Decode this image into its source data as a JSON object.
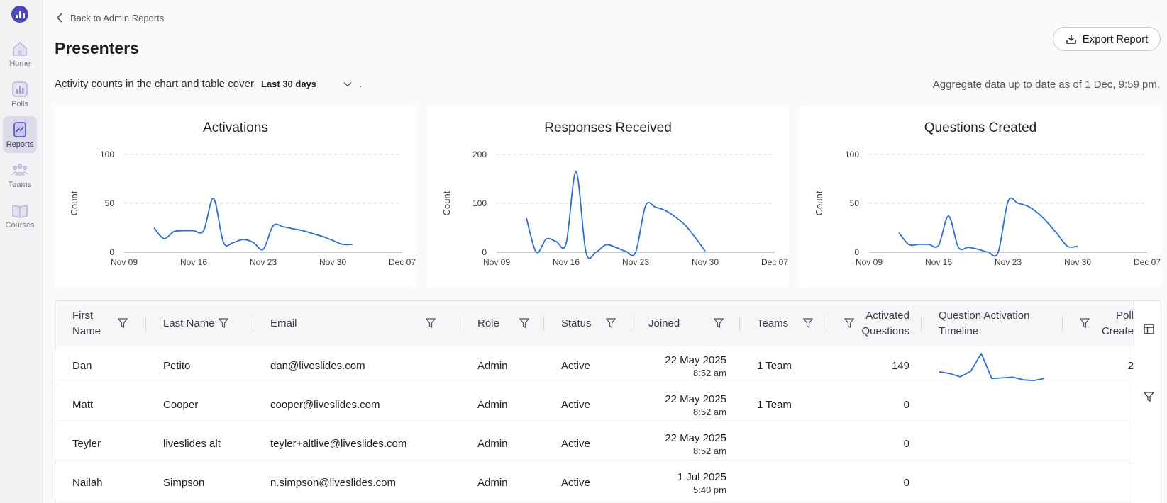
{
  "sidebar": {
    "items": [
      {
        "label": "Home",
        "icon": "home-icon"
      },
      {
        "label": "Polls",
        "icon": "polls-icon"
      },
      {
        "label": "Reports",
        "icon": "reports-icon",
        "active": true
      },
      {
        "label": "Teams",
        "icon": "teams-icon"
      },
      {
        "label": "Courses",
        "icon": "courses-icon"
      }
    ]
  },
  "header": {
    "back_label": "Back to Admin Reports",
    "title": "Presenters",
    "export_label": "Export Report"
  },
  "filters": {
    "activity_text": "Activity counts in the chart and table cover",
    "range_value": "Last 30 days",
    "period": ".",
    "aggregate_text": "Aggregate data up to date as of 1 Dec, 9:59 pm."
  },
  "chart_data": [
    {
      "type": "line",
      "title": "Activations",
      "ylabel": "Count",
      "xlabel": "",
      "ylim": [
        0,
        100
      ],
      "yticks": [
        0,
        50,
        100
      ],
      "xticks": [
        "Nov 09",
        "Nov 16",
        "Nov 23",
        "Nov 30",
        "Dec 07"
      ],
      "x_range_days": [
        0,
        28
      ],
      "grid": true,
      "color": "#2f6fce",
      "x": [
        3,
        4,
        5,
        6,
        7,
        8,
        9,
        10,
        11,
        12,
        13,
        14,
        15,
        16,
        17,
        18,
        19,
        20,
        21,
        22,
        23
      ],
      "y": [
        25,
        14,
        21,
        22,
        22,
        22,
        55,
        10,
        10,
        13,
        10,
        3,
        27,
        26,
        24,
        22,
        19,
        16,
        12,
        8,
        8
      ]
    },
    {
      "type": "line",
      "title": "Responses Received",
      "ylabel": "Count",
      "xlabel": "",
      "ylim": [
        0,
        200
      ],
      "yticks": [
        0,
        100,
        200
      ],
      "xticks": [
        "Nov 09",
        "Nov 16",
        "Nov 23",
        "Nov 30",
        "Dec 07"
      ],
      "x_range_days": [
        0,
        28
      ],
      "grid": true,
      "color": "#2f6fce",
      "x": [
        3,
        4,
        5,
        6,
        7,
        8,
        9,
        10,
        11,
        12,
        13,
        14,
        15,
        16,
        17,
        18,
        19,
        20,
        21
      ],
      "y": [
        70,
        0,
        27,
        22,
        18,
        165,
        0,
        0,
        15,
        10,
        2,
        0,
        95,
        92,
        85,
        72,
        55,
        30,
        2
      ]
    },
    {
      "type": "line",
      "title": "Questions Created",
      "ylabel": "Count",
      "xlabel": "",
      "ylim": [
        0,
        100
      ],
      "yticks": [
        0,
        50,
        100
      ],
      "xticks": [
        "Nov 09",
        "Nov 16",
        "Nov 23",
        "Nov 30",
        "Dec 07"
      ],
      "x_range_days": [
        0,
        28
      ],
      "grid": true,
      "color": "#2f6fce",
      "x": [
        3,
        4,
        5,
        6,
        7,
        8,
        9,
        10,
        11,
        12,
        13,
        14,
        15,
        16,
        17,
        18,
        19,
        20,
        21
      ],
      "y": [
        20,
        8,
        8,
        8,
        7,
        37,
        5,
        5,
        3,
        0,
        0,
        52,
        50,
        47,
        40,
        30,
        18,
        6,
        6
      ]
    }
  ],
  "table": {
    "columns": [
      {
        "label": "First Name",
        "lines": [
          "First",
          "Name"
        ]
      },
      {
        "label": "Last Name",
        "lines": [
          "Last Name"
        ]
      },
      {
        "label": "Email",
        "lines": [
          "Email"
        ]
      },
      {
        "label": "Role",
        "lines": [
          "Role"
        ]
      },
      {
        "label": "Status",
        "lines": [
          "Status"
        ]
      },
      {
        "label": "Joined",
        "lines": [
          "Joined"
        ]
      },
      {
        "label": "Teams",
        "lines": [
          "Teams"
        ]
      },
      {
        "label": "Activated Questions",
        "lines": [
          "Activated",
          "Questions"
        ]
      },
      {
        "label": "Question Activation Timeline",
        "lines": [
          "Question Activation",
          "Timeline"
        ]
      },
      {
        "label": "Polls Created",
        "lines": [
          "Poll",
          "Create"
        ]
      }
    ],
    "rows": [
      {
        "first": "Dan",
        "last": "Petito",
        "email": "dan@liveslides.com",
        "role": "Admin",
        "status": "Active",
        "joined_date": "22 May 2025",
        "joined_time": "8:52 am",
        "teams": "1 Team",
        "activated": "149",
        "polls": "2",
        "timeline": [
          30,
          25,
          15,
          32,
          85,
          10,
          12,
          14,
          6,
          4,
          10
        ]
      },
      {
        "first": "Matt",
        "last": "Cooper",
        "email": "cooper@liveslides.com",
        "role": "Admin",
        "status": "Active",
        "joined_date": "22 May 2025",
        "joined_time": "8:52 am",
        "teams": "1 Team",
        "activated": "0",
        "polls": "",
        "timeline": []
      },
      {
        "first": "Teyler",
        "last": "liveslides alt",
        "email": "teyler+altlive@liveslides.com",
        "role": "Admin",
        "status": "Active",
        "joined_date": "22 May 2025",
        "joined_time": "8:52 am",
        "teams": "",
        "activated": "0",
        "polls": "",
        "timeline": []
      },
      {
        "first": "Nailah",
        "last": "Simpson",
        "email": "n.simpson@liveslides.com",
        "role": "Admin",
        "status": "Active",
        "joined_date": "1 Jul 2025",
        "joined_time": "5:40 pm",
        "teams": "",
        "activated": "0",
        "polls": "",
        "timeline": []
      }
    ]
  },
  "colors": {
    "accent": "#4b47b8",
    "line": "#2f6fce",
    "grid": "#d9d9de"
  }
}
